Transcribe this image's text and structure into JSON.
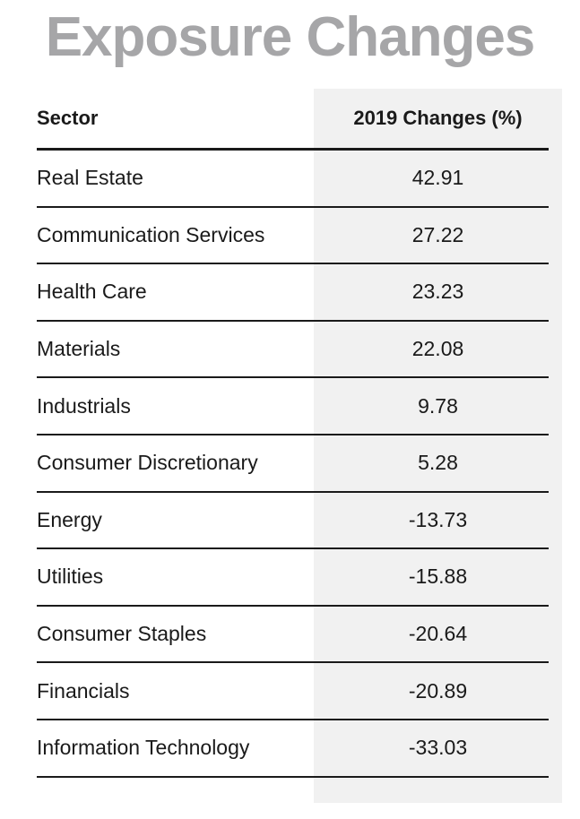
{
  "chart_data": {
    "type": "table",
    "title": "Exposure Changes",
    "columns": [
      "Sector",
      "2019 Changes (%)"
    ],
    "rows": [
      {
        "sector": "Real Estate",
        "value": "42.91"
      },
      {
        "sector": "Communication Services",
        "value": "27.22"
      },
      {
        "sector": "Health Care",
        "value": "23.23"
      },
      {
        "sector": "Materials",
        "value": "22.08"
      },
      {
        "sector": "Industrials",
        "value": "9.78"
      },
      {
        "sector": "Consumer Discretionary",
        "value": "5.28"
      },
      {
        "sector": "Energy",
        "value": "-13.73"
      },
      {
        "sector": "Utilities",
        "value": "-15.88"
      },
      {
        "sector": "Consumer Staples",
        "value": "-20.64"
      },
      {
        "sector": "Financials",
        "value": "-20.89"
      },
      {
        "sector": "Information Technology",
        "value": "-33.03"
      }
    ]
  },
  "colors": {
    "title": "#a6a6a8",
    "shaded_column": "#f1f1f1",
    "text": "#1a1a1a",
    "rule": "#1a1a1a"
  }
}
